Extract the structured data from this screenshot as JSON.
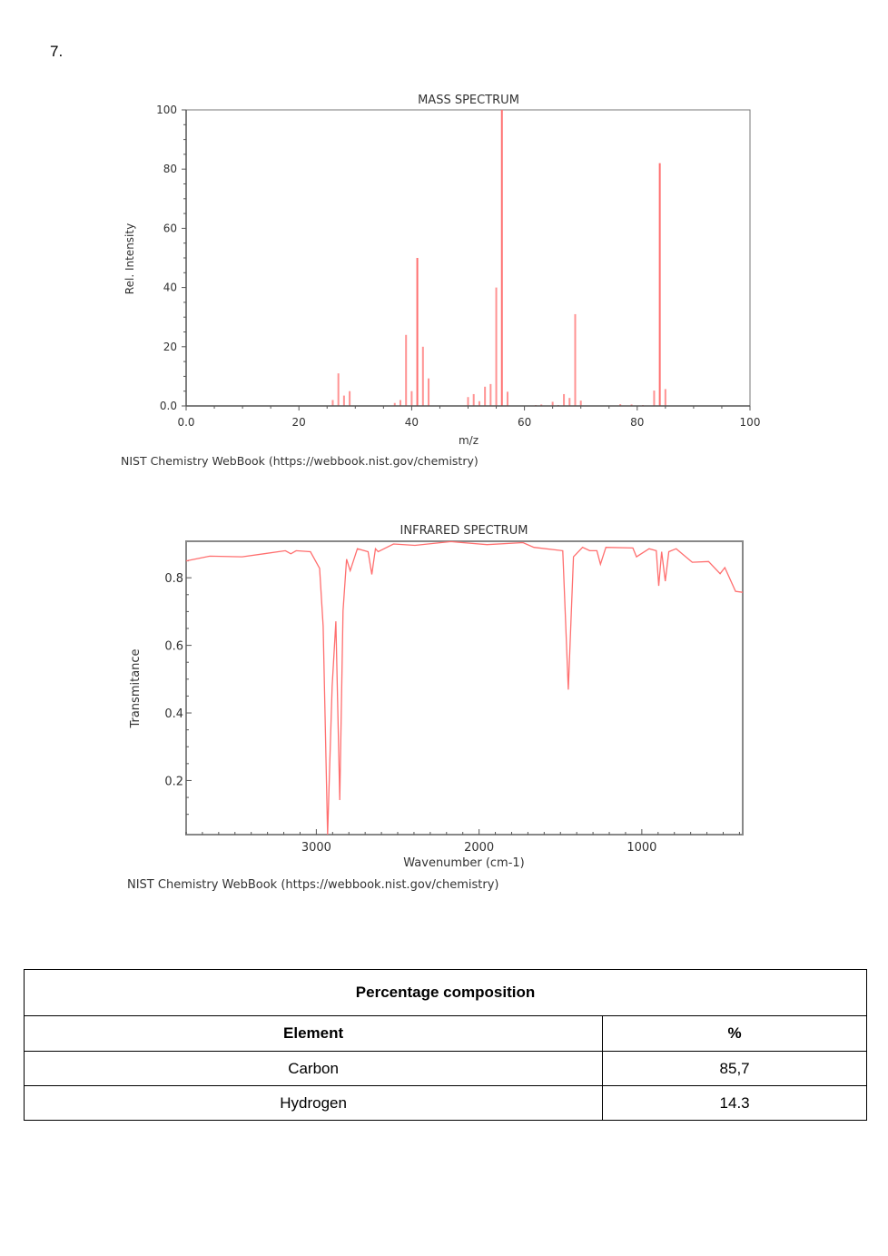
{
  "question_number": "7.",
  "colors": {
    "spectrum": "#ff6f6f",
    "axis": "#555555"
  },
  "mass_spectrum": {
    "credit": "NIST Chemistry WebBook (https://webbook.nist.gov/chemistry)",
    "chart_data": {
      "type": "bar",
      "title": "MASS SPECTRUM",
      "xlabel": "m/z",
      "ylabel": "Rel. Intensity",
      "xlim": [
        0,
        100
      ],
      "ylim": [
        0,
        100
      ],
      "xticks": [
        "0.0",
        "20",
        "40",
        "60",
        "80",
        "100"
      ],
      "xtick_values": [
        0,
        20,
        40,
        60,
        80,
        100
      ],
      "yticks": [
        "0.0",
        "20",
        "40",
        "60",
        "80",
        "100"
      ],
      "ytick_values": [
        0,
        20,
        40,
        60,
        80,
        100
      ],
      "x": [
        26,
        27,
        28,
        29,
        37,
        38,
        39,
        40,
        41,
        42,
        43,
        50,
        51,
        52,
        53,
        54,
        55,
        56,
        57,
        62,
        63,
        65,
        66,
        67,
        68,
        69,
        70,
        77,
        79,
        81,
        83,
        84,
        85
      ],
      "values": [
        2,
        11,
        3.5,
        5,
        1,
        2,
        24,
        5,
        50,
        20,
        9.3,
        3,
        4,
        1.6,
        6.5,
        7.4,
        40,
        100,
        4.8,
        0.3,
        0.5,
        1.4,
        0.3,
        4,
        2.7,
        31,
        1.8,
        0.6,
        0.5,
        0.3,
        5.2,
        82,
        5.7
      ]
    }
  },
  "ir_spectrum": {
    "credit": "NIST Chemistry WebBook (https://webbook.nist.gov/chemistry)",
    "chart_data": {
      "type": "line",
      "title": "INFRARED SPECTRUM",
      "xlabel": "Wavenumber (cm-1)",
      "ylabel": "Transmitance",
      "xlim": [
        3800,
        380
      ],
      "ylim": [
        0.04,
        0.908
      ],
      "xticks": [
        "3000",
        "2000",
        "1000"
      ],
      "xtick_values": [
        3000,
        2000,
        1000
      ],
      "yticks": [
        "0.2",
        "0.4",
        "0.6",
        "0.8"
      ],
      "ytick_values": [
        0.2,
        0.4,
        0.6,
        0.8
      ],
      "x": [
        3800,
        3655,
        3456,
        3324,
        3190,
        3157,
        3124,
        3036,
        2980,
        2958,
        2931,
        2903,
        2880,
        2856,
        2836,
        2814,
        2792,
        2748,
        2682,
        2659,
        2637,
        2620,
        2526,
        2394,
        2173,
        1951,
        1730,
        1663,
        1486,
        1452,
        1420,
        1364,
        1320,
        1276,
        1254,
        1221,
        1055,
        1033,
        955,
        911,
        896,
        878,
        856,
        834,
        789,
        690,
        590,
        519,
        490,
        424,
        380
      ],
      "y": [
        0.85,
        0.864,
        0.862,
        0.871,
        0.88,
        0.871,
        0.88,
        0.877,
        0.828,
        0.657,
        0.04,
        0.478,
        0.671,
        0.142,
        0.702,
        0.855,
        0.821,
        0.886,
        0.877,
        0.81,
        0.886,
        0.877,
        0.9,
        0.896,
        0.907,
        0.898,
        0.904,
        0.89,
        0.88,
        0.469,
        0.862,
        0.89,
        0.88,
        0.88,
        0.84,
        0.89,
        0.888,
        0.862,
        0.886,
        0.88,
        0.776,
        0.877,
        0.79,
        0.877,
        0.886,
        0.846,
        0.848,
        0.812,
        0.83,
        0.76,
        0.757
      ]
    }
  },
  "table": {
    "caption": "Percentage composition",
    "headers": [
      "Element",
      "%"
    ],
    "rows": [
      [
        "Carbon",
        "85,7"
      ],
      [
        "Hydrogen",
        "14.3"
      ]
    ]
  }
}
